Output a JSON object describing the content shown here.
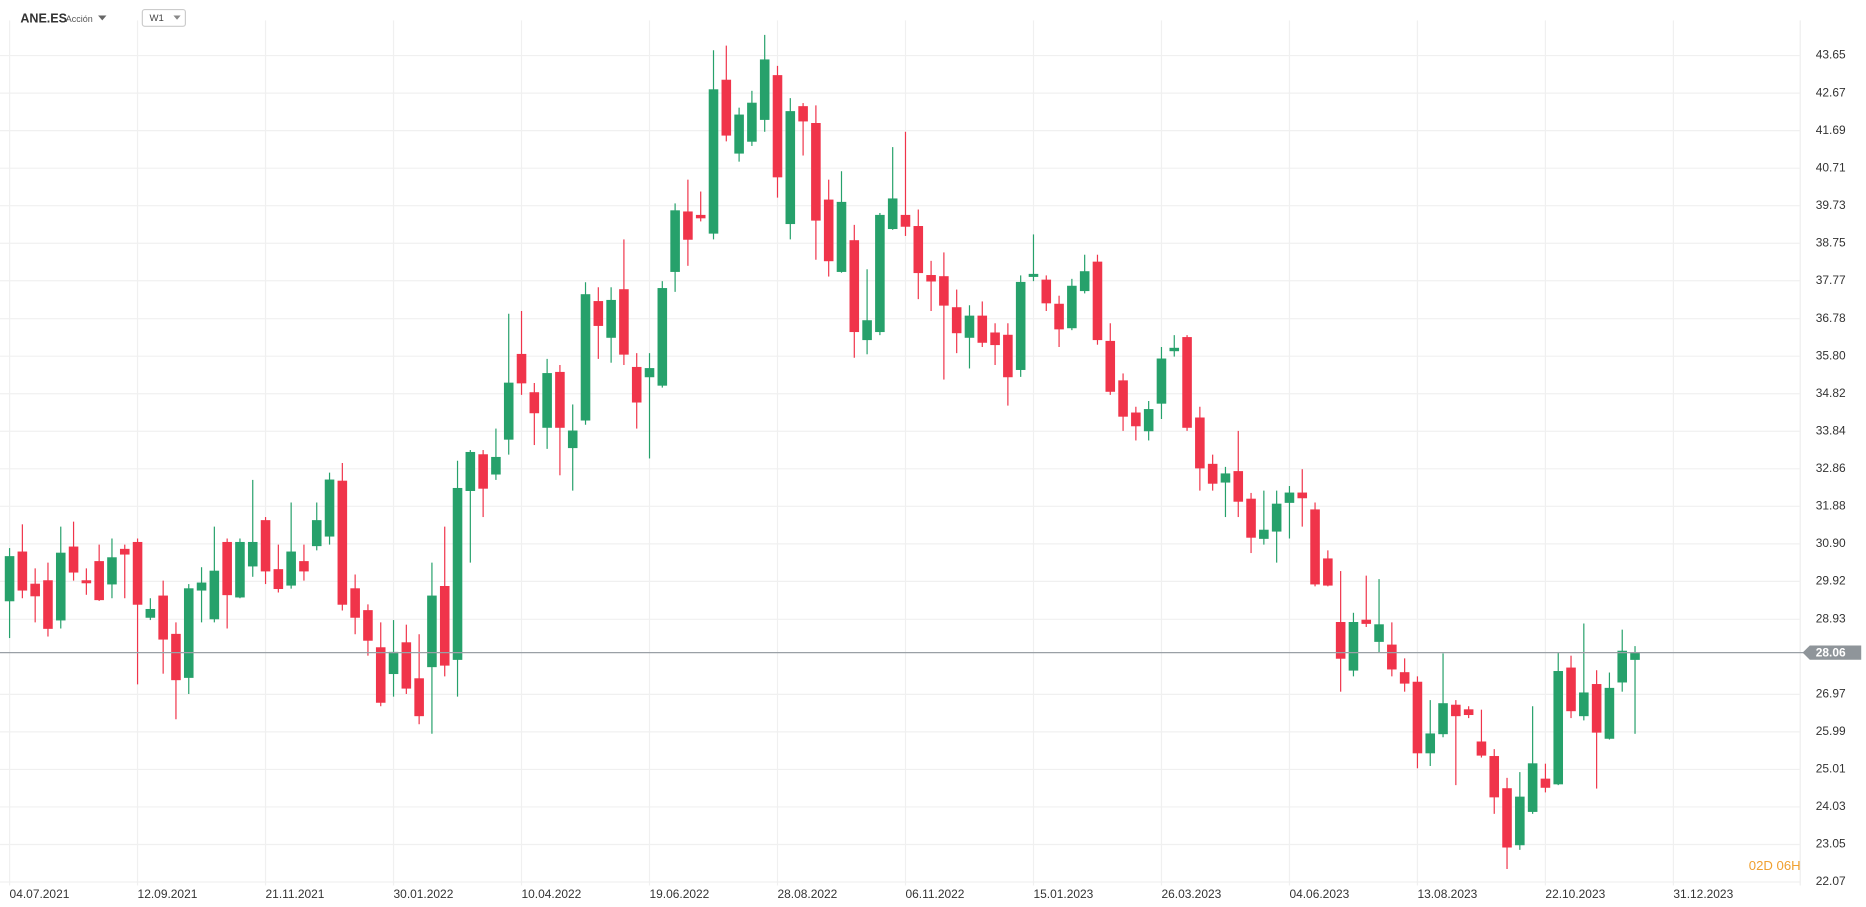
{
  "chart_data": {
    "type": "candlestick",
    "title": "ANE.ES",
    "subtitle": "Acción",
    "timeframe": "W1",
    "categories": [
      "04.07.2021",
      null,
      null,
      null,
      null,
      null,
      null,
      null,
      null,
      null,
      "12.09.2021",
      null,
      null,
      null,
      null,
      null,
      null,
      null,
      null,
      null,
      "21.11.2021",
      null,
      null,
      null,
      null,
      null,
      null,
      null,
      null,
      null,
      "30.01.2022",
      null,
      null,
      null,
      null,
      null,
      null,
      null,
      null,
      null,
      "10.04.2022",
      null,
      null,
      null,
      null,
      null,
      null,
      null,
      null,
      null,
      "19.06.2022",
      null,
      null,
      null,
      null,
      null,
      null,
      null,
      null,
      null,
      "28.08.2022",
      null,
      null,
      null,
      null,
      null,
      null,
      null,
      null,
      null,
      "06.11.2022",
      null,
      null,
      null,
      null,
      null,
      null,
      null,
      null,
      null,
      "15.01.2023",
      null,
      null,
      null,
      null,
      null,
      null,
      null,
      null,
      null,
      "26.03.2023",
      null,
      null,
      null,
      null,
      null,
      null,
      null,
      null,
      null,
      "04.06.2023",
      null,
      null,
      null,
      null,
      null,
      null,
      null,
      null,
      null,
      "13.08.2023",
      null,
      null,
      null,
      null,
      null,
      null,
      null,
      null,
      null,
      "22.10.2023",
      null,
      null,
      null,
      null,
      null,
      null,
      null,
      null,
      null,
      "31.12.2023"
    ],
    "open": [
      29.41,
      30.69,
      29.85,
      29.94,
      28.91,
      30.82,
      29.94,
      30.44,
      29.85,
      30.76,
      30.94,
      28.98,
      29.54,
      28.54,
      27.41,
      29.69,
      28.94,
      30.94,
      29.51,
      30.32,
      31.51,
      30.23,
      29.82,
      30.44,
      30.85,
      31.1,
      32.54,
      29.73,
      29.16,
      28.19,
      27.51,
      28.32,
      27.38,
      27.69,
      29.79,
      27.88,
      32.29,
      33.23,
      32.72,
      33.63,
      35.85,
      34.85,
      33.94,
      35.38,
      33.41,
      34.13,
      37.23,
      36.29,
      37.54,
      35.51,
      35.26,
      35.04,
      38.01,
      39.57,
      39.48,
      39.01,
      43.01,
      41.1,
      41.41,
      41.98,
      43.13,
      39.26,
      42.32,
      41.88,
      39.88,
      38.01,
      38.82,
      36.23,
      36.44,
      39.13,
      39.48,
      39.19,
      37.91,
      37.88,
      37.07,
      36.29,
      36.85,
      36.41,
      36.35,
      35.45,
      37.88,
      37.79,
      37.16,
      36.54,
      37.51,
      38.26,
      36.19,
      35.16,
      34.32,
      33.85,
      34.57,
      35.94,
      36.29,
      34.19,
      32.98,
      32.51,
      32.79,
      32.07,
      31.04,
      31.23,
      31.98,
      32.23,
      31.79,
      30.51,
      28.85,
      27.6,
      28.91,
      28.35,
      28.26,
      27.54,
      27.29,
      25.44,
      25.94,
      26.69,
      26.57,
      25.73,
      25.35,
      24.51,
      23.04,
      23.91,
      24.76,
      24.63,
      27.66,
      26.41,
      27.23,
      25.82,
      27.29,
      27.88,
      null,
      null,
      null
    ],
    "high": [
      30.79,
      31.41,
      30.26,
      30.41,
      31.35,
      31.48,
      30.26,
      30.88,
      31.04,
      30.88,
      31.04,
      29.48,
      29.94,
      28.85,
      29.85,
      30.29,
      31.35,
      31.04,
      31.04,
      32.57,
      31.6,
      30.88,
      31.98,
      30.88,
      31.98,
      32.76,
      33.01,
      30.1,
      29.32,
      28.85,
      28.91,
      28.79,
      28.54,
      30.41,
      31.35,
      33.07,
      33.35,
      33.35,
      33.91,
      36.91,
      36.98,
      35.1,
      35.73,
      35.57,
      34.54,
      37.73,
      37.6,
      37.6,
      38.85,
      35.88,
      35.88,
      37.76,
      39.79,
      40.41,
      40.1,
      43.79,
      43.91,
      42.29,
      42.73,
      44.19,
      43.38,
      42.54,
      42.41,
      42.35,
      40.41,
      40.63,
      39.23,
      38.07,
      39.54,
      41.26,
      41.66,
      39.63,
      38.29,
      38.51,
      37.54,
      37.13,
      37.23,
      36.66,
      36.66,
      37.91,
      38.98,
      37.91,
      37.38,
      37.82,
      38.45,
      38.45,
      36.66,
      35.35,
      34.48,
      34.63,
      36.04,
      36.35,
      36.35,
      34.48,
      33.23,
      32.91,
      33.85,
      32.23,
      32.29,
      32.29,
      32.41,
      32.85,
      31.98,
      30.73,
      30.19,
      29.1,
      30.07,
      29.98,
      28.85,
      27.91,
      27.44,
      26.82,
      28.04,
      26.82,
      26.66,
      26.57,
      25.54,
      24.79,
      24.94,
      26.66,
      25.16,
      28.07,
      27.98,
      28.82,
      27.6,
      27.54,
      28.66,
      28.23,
      null,
      null,
      null
    ],
    "low": [
      28.44,
      29.48,
      28.85,
      28.48,
      28.69,
      29.94,
      29.57,
      29.41,
      29.48,
      29.48,
      27.23,
      28.91,
      27.51,
      26.32,
      26.98,
      28.85,
      28.85,
      28.69,
      29.48,
      30.04,
      29.85,
      29.63,
      29.73,
      29.94,
      30.73,
      30.88,
      29.16,
      28.54,
      27.98,
      26.66,
      26.91,
      26.98,
      26.19,
      25.94,
      27.44,
      26.91,
      30.41,
      31.6,
      32.57,
      33.23,
      34.79,
      33.48,
      33.38,
      32.69,
      32.29,
      34.01,
      35.73,
      35.63,
      35.57,
      33.91,
      33.13,
      34.98,
      37.48,
      38.16,
      39.32,
      38.85,
      41.41,
      40.88,
      41.29,
      41.66,
      39.94,
      38.85,
      41.04,
      38.32,
      37.88,
      37.98,
      35.76,
      35.85,
      36.35,
      39.1,
      38.94,
      37.29,
      36.98,
      35.19,
      35.88,
      35.48,
      36.04,
      35.57,
      34.51,
      35.26,
      37.76,
      36.98,
      36.04,
      36.48,
      37.44,
      36.1,
      34.79,
      33.85,
      33.6,
      33.6,
      34.16,
      35.79,
      33.85,
      32.29,
      32.29,
      31.6,
      31.6,
      30.66,
      30.88,
      30.41,
      31.04,
      31.35,
      29.79,
      29.79,
      27.04,
      27.44,
      28.73,
      28.07,
      27.44,
      27.04,
      25.04,
      25.1,
      25.85,
      24.6,
      26.35,
      25.32,
      23.85,
      22.41,
      22.91,
      23.85,
      24.41,
      24.6,
      26.35,
      26.29,
      24.51,
      25.79,
      27.04,
      25.94,
      null,
      null,
      null
    ],
    "close": [
      30.57,
      29.69,
      29.54,
      28.69,
      30.66,
      30.16,
      29.88,
      29.44,
      30.54,
      30.63,
      29.32,
      29.19,
      28.41,
      27.35,
      29.73,
      29.88,
      30.19,
      29.57,
      30.94,
      30.94,
      30.19,
      29.73,
      30.69,
      30.19,
      31.51,
      32.57,
      29.32,
      28.98,
      28.38,
      26.76,
      28.07,
      27.13,
      26.41,
      29.54,
      27.73,
      32.35,
      33.29,
      32.35,
      33.16,
      35.1,
      35.1,
      34.32,
      35.35,
      33.94,
      33.85,
      37.41,
      36.6,
      37.26,
      35.85,
      34.6,
      35.48,
      37.57,
      39.6,
      38.85,
      39.41,
      42.76,
      41.57,
      42.1,
      42.41,
      43.54,
      40.48,
      42.19,
      41.94,
      39.35,
      38.29,
      39.82,
      36.44,
      36.73,
      39.48,
      39.91,
      39.19,
      37.98,
      37.76,
      37.13,
      36.41,
      36.85,
      36.16,
      36.1,
      35.26,
      37.73,
      37.94,
      37.19,
      36.51,
      37.63,
      38.01,
      36.23,
      34.88,
      34.23,
      33.98,
      34.41,
      35.73,
      36.01,
      33.94,
      32.88,
      32.48,
      32.73,
      32.01,
      31.07,
      31.26,
      31.94,
      32.23,
      32.1,
      29.85,
      29.82,
      27.91,
      28.85,
      28.82,
      28.79,
      27.63,
      27.26,
      25.44,
      25.94,
      26.73,
      26.41,
      26.44,
      25.38,
      24.29,
      22.98,
      24.29,
      25.16,
      24.54,
      27.57,
      26.54,
      27.01,
      25.98,
      27.13,
      28.1,
      28.06,
      null,
      null,
      null
    ],
    "up_color": "#26a16b",
    "down_color": "#f0344a",
    "current_price": 28.06,
    "countdown": "02D 06H",
    "ylim": [
      21.98,
      44.57
    ],
    "yticks": [
      43.65,
      42.67,
      41.69,
      40.71,
      39.73,
      38.75,
      37.77,
      36.78,
      {
        "value": 35.8,
        "label": "35.80"
      },
      34.82,
      33.84,
      32.86,
      31.88,
      {
        "value": 30.9,
        "label": "30.90"
      },
      29.92,
      28.93,
      26.97,
      25.99,
      25.01,
      24.03,
      23.05,
      22.07
    ],
    "grid": true
  }
}
